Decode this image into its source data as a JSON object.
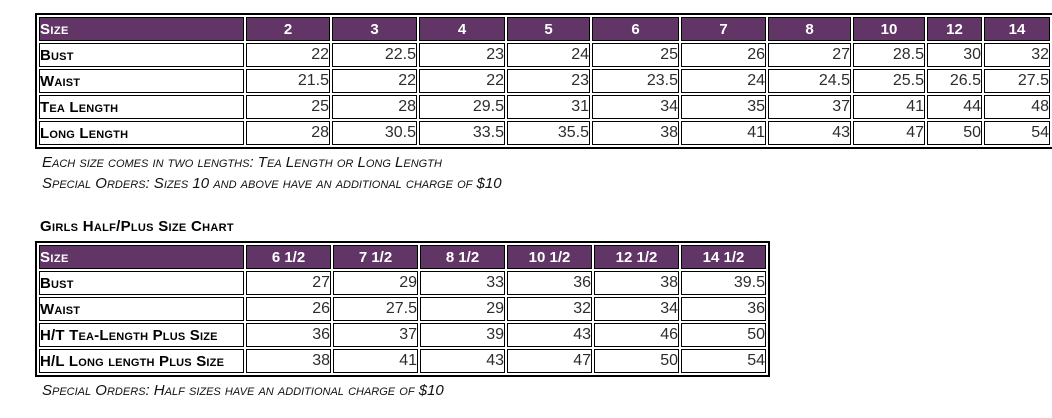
{
  "colors": {
    "header_bg": "#623567",
    "header_text": "#FFFFFF",
    "border": "#000000",
    "value_text": "#2D2D2D"
  },
  "table1": {
    "header": [
      "Size",
      "2",
      "3",
      "4",
      "5",
      "6",
      "7",
      "8",
      "10",
      "12",
      "14"
    ],
    "rows": [
      {
        "label": "Bust",
        "values": [
          "22",
          "22.5",
          "23",
          "24",
          "25",
          "26",
          "27",
          "28.5",
          "30",
          "32"
        ]
      },
      {
        "label": "Waist",
        "values": [
          "21.5",
          "22",
          "22",
          "23",
          "23.5",
          "24",
          "24.5",
          "25.5",
          "26.5",
          "27.5"
        ]
      },
      {
        "label": "Tea Length",
        "values": [
          "25",
          "28",
          "29.5",
          "31",
          "34",
          "35",
          "37",
          "41",
          "44",
          "48"
        ]
      },
      {
        "label": "Long Length",
        "values": [
          "28",
          "30.5",
          "33.5",
          "35.5",
          "38",
          "41",
          "43",
          "47",
          "50",
          "54"
        ]
      }
    ],
    "notes": [
      "Each size comes in two lengths: Tea Length or Long Length",
      "Special Orders: Sizes 10 and above have an additional charge of $10"
    ]
  },
  "table2": {
    "title": "Girls Half/Plus Size Chart",
    "header": [
      "Size",
      "6 1/2",
      "7 1/2",
      "8 1/2",
      "10 1/2",
      "12 1/2",
      "14 1/2"
    ],
    "rows": [
      {
        "label": "Bust",
        "values": [
          "27",
          "29",
          "33",
          "36",
          "38",
          "39.5"
        ]
      },
      {
        "label": "Waist",
        "values": [
          "26",
          "27.5",
          "29",
          "32",
          "34",
          "36"
        ]
      },
      {
        "label": "H/T Tea-Length Plus Size",
        "values": [
          "36",
          "37",
          "39",
          "43",
          "46",
          "50"
        ]
      },
      {
        "label": "H/L Long length Plus Size",
        "values": [
          "38",
          "41",
          "43",
          "47",
          "50",
          "54"
        ]
      }
    ],
    "note": "Special Orders: Half sizes have an additional charge of $10"
  }
}
